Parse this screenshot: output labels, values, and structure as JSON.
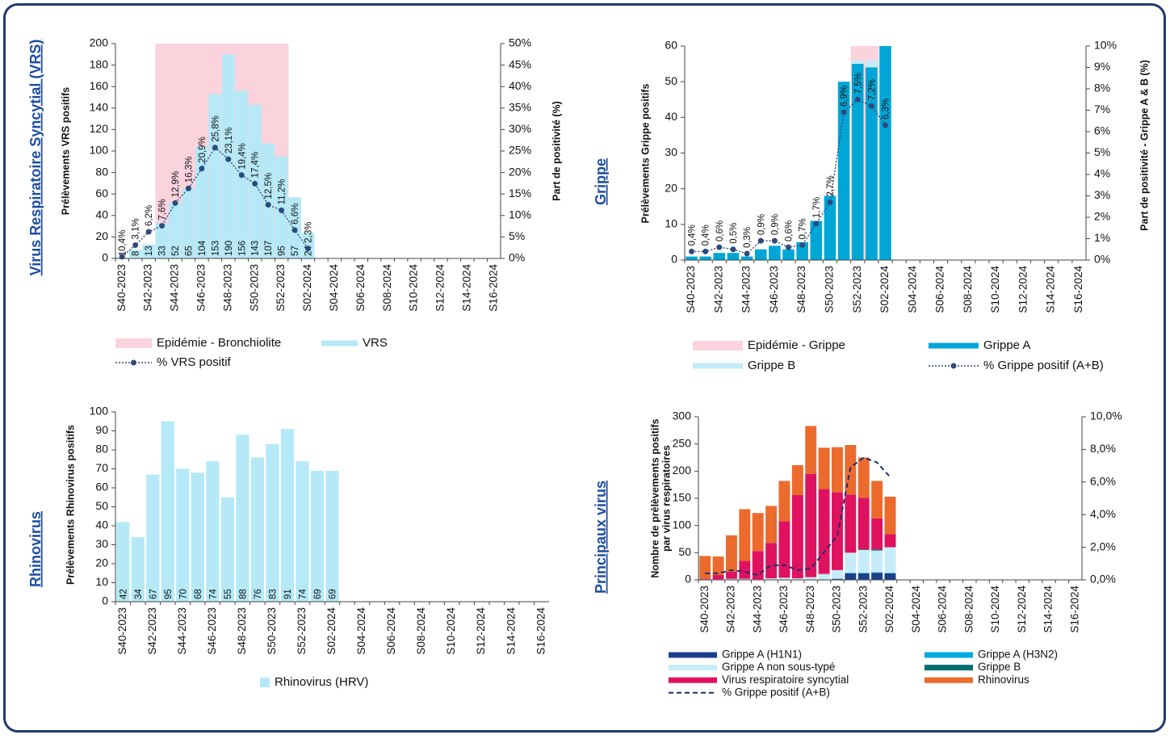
{
  "chart_data": [
    {
      "type": "bar",
      "title": "Virus Respiratoire Syncytial (VRS)",
      "ylabel": "Prélèvements VRS positifs",
      "y2label": "Part de positivité (%)",
      "categories": [
        "S40-2023",
        null,
        "S42-2023",
        null,
        "S44-2023",
        null,
        "S46-2023",
        null,
        "S48-2023",
        null,
        "S50-2023",
        null,
        "S52-2023",
        null,
        "S02-2024",
        null,
        "S04-2024",
        null,
        "S06-2024",
        null,
        "S08-2024",
        null,
        "S10-2024",
        null,
        "S12-2024",
        null,
        "S14-2024",
        null,
        "S16-2024"
      ],
      "ylim": [
        0,
        200
      ],
      "yticks": [
        0,
        20,
        40,
        60,
        80,
        100,
        120,
        140,
        160,
        180,
        200
      ],
      "y2lim": [
        0,
        50
      ],
      "y2ticks": [
        {
          "value": 0,
          "label": "0%"
        },
        {
          "value": 5,
          "label": "5%"
        },
        {
          "value": 10,
          "label": "10%"
        },
        {
          "value": 15,
          "label": "15%"
        },
        {
          "value": 20,
          "label": "20%"
        },
        {
          "value": 25,
          "label": "25%"
        },
        {
          "value": 30,
          "label": "30%"
        },
        {
          "value": 35,
          "label": "35%"
        },
        {
          "value": 40,
          "label": "40%"
        },
        {
          "value": 45,
          "label": "45%"
        },
        {
          "value": 50,
          "label": "50%"
        }
      ],
      "bar_labels": true,
      "series": [
        {
          "name": "Epidémie - Bronchiolite",
          "type": "band",
          "color": "#fad3dd",
          "values": [
            null,
            null,
            null,
            200,
            200,
            200,
            200,
            200,
            200,
            200,
            200,
            200,
            200,
            null,
            null,
            null,
            null,
            null,
            null,
            null,
            null,
            null,
            null,
            null,
            null,
            null,
            null,
            null,
            null
          ]
        },
        {
          "name": "VRS",
          "type": "bar",
          "color": "#b5e9f7",
          "values": [
            1,
            8,
            13,
            33,
            52,
            65,
            104,
            153,
            190,
            156,
            143,
            107,
            95,
            57,
            24,
            null,
            null,
            null,
            null,
            null,
            null,
            null,
            null,
            null,
            null,
            null,
            null,
            null,
            null
          ]
        },
        {
          "name": "% VRS positif",
          "type": "line",
          "axis": "y2",
          "color": "#2e4a7d",
          "dash": "dotted",
          "markers": true,
          "values": [
            0.4,
            3.1,
            6.2,
            7.6,
            12.9,
            16.3,
            20.9,
            25.8,
            23.1,
            19.4,
            17.4,
            12.5,
            11.2,
            6.6,
            2.3,
            null,
            null,
            null,
            null,
            null,
            null,
            null,
            null,
            null,
            null,
            null,
            null,
            null,
            null
          ],
          "value_labels": [
            "0,4%",
            "3,1%",
            "6,2%",
            "7,6%",
            "12,9%",
            "16,3%",
            "20,9%",
            "25,8%",
            "23,1%",
            "19,4%",
            "17,4%",
            "12,5%",
            "11,2%",
            "6,6%",
            "2,3%",
            null,
            null,
            null,
            null,
            null,
            null,
            null,
            null,
            null,
            null,
            null,
            null,
            null,
            null
          ]
        }
      ]
    },
    {
      "type": "bar",
      "title": "Grippe",
      "ylabel": "Prélèvements Grippe positifs",
      "y2label": "Part de positivité - Grippe A & B (%)",
      "categories": [
        "S40-2023",
        null,
        "S42-2023",
        null,
        "S44-2023",
        null,
        "S46-2023",
        null,
        "S48-2023",
        null,
        "S50-2023",
        null,
        "S52-2023",
        null,
        "S02-2024",
        null,
        "S04-2024",
        null,
        "S06-2024",
        null,
        "S08-2024",
        null,
        "S10-2024",
        null,
        "S12-2024",
        null,
        "S14-2024",
        null,
        "S16-2024"
      ],
      "ylim": [
        0,
        60
      ],
      "yticks": [
        0,
        10,
        20,
        30,
        40,
        50,
        60
      ],
      "y2lim": [
        0,
        10
      ],
      "y2ticks": [
        {
          "value": 0,
          "label": "0%"
        },
        {
          "value": 1,
          "label": "1%"
        },
        {
          "value": 2,
          "label": "2%"
        },
        {
          "value": 3,
          "label": "3%"
        },
        {
          "value": 4,
          "label": "4%"
        },
        {
          "value": 5,
          "label": "5%"
        },
        {
          "value": 6,
          "label": "6%"
        },
        {
          "value": 7,
          "label": "7%"
        },
        {
          "value": 8,
          "label": "8%"
        },
        {
          "value": 9,
          "label": "9%"
        },
        {
          "value": 10,
          "label": "10%"
        }
      ],
      "bar_labels": false,
      "series": [
        {
          "name": "Epidémie - Grippe",
          "type": "band",
          "color": "#fad3dd",
          "values": [
            null,
            null,
            null,
            null,
            null,
            null,
            null,
            null,
            null,
            null,
            null,
            null,
            60,
            60,
            null,
            null,
            null,
            null,
            null,
            null,
            null,
            null,
            null,
            null,
            null,
            null,
            null,
            null,
            null
          ]
        },
        {
          "name": "Grippe A",
          "type": "bar",
          "color": "#00a6d6",
          "values": [
            1,
            1,
            2,
            2,
            1,
            3,
            4,
            3,
            5,
            11,
            18,
            50,
            55,
            54,
            60,
            null,
            null,
            null,
            null,
            null,
            null,
            null,
            null,
            null,
            null,
            null,
            null,
            null,
            null
          ]
        },
        {
          "name": "Grippe B",
          "type": "bar",
          "color": "#c3ecf8",
          "values": [
            0,
            0,
            0,
            0,
            0,
            0,
            0,
            0,
            0,
            0,
            0,
            0,
            1,
            2,
            0,
            null,
            null,
            null,
            null,
            null,
            null,
            null,
            null,
            null,
            null,
            null,
            null,
            null,
            null
          ]
        },
        {
          "name": "% Grippe positif (A+B)",
          "type": "line",
          "axis": "y2",
          "color": "#2e4a7d",
          "dash": "dotted",
          "markers": true,
          "values": [
            0.4,
            0.4,
            0.6,
            0.5,
            0.3,
            0.9,
            0.9,
            0.6,
            0.7,
            1.7,
            2.7,
            6.9,
            7.5,
            7.2,
            6.3,
            null,
            null,
            null,
            null,
            null,
            null,
            null,
            null,
            null,
            null,
            null,
            null,
            null,
            null
          ],
          "value_labels": [
            "0,4%",
            "0,4%",
            "0,6%",
            "0,5%",
            "0,3%",
            "0,9%",
            "0,9%",
            "0,6%",
            "0,7%",
            "1,7%",
            "2,7%",
            "6,9%",
            "7,5%",
            "7,2%",
            "6,3%",
            null,
            null,
            null,
            null,
            null,
            null,
            null,
            null,
            null,
            null,
            null,
            null,
            null,
            null
          ]
        }
      ]
    },
    {
      "type": "bar",
      "title": "Rhinovirus",
      "ylabel": "Prélèvements Rhinovirus positifs",
      "categories": [
        "S40-2023",
        null,
        "S42-2023",
        null,
        "S44-2023",
        null,
        "S46-2023",
        null,
        "S48-2023",
        null,
        "S50-2023",
        null,
        "S52-2023",
        null,
        "S02-2024",
        null,
        "S04-2024",
        null,
        "S06-2024",
        null,
        "S08-2024",
        null,
        "S10-2024",
        null,
        "S12-2024",
        null,
        "S14-2024",
        null,
        "S16-2024"
      ],
      "ylim": [
        0,
        100
      ],
      "yticks": [
        0,
        10,
        20,
        30,
        40,
        50,
        60,
        70,
        80,
        90,
        100
      ],
      "bar_labels": true,
      "series": [
        {
          "name": "Rhinovirus (HRV)",
          "type": "bar",
          "color": "#b5e9f7",
          "values": [
            42,
            34,
            67,
            95,
            70,
            68,
            74,
            55,
            88,
            76,
            83,
            91,
            74,
            69,
            69,
            null,
            null,
            null,
            null,
            null,
            null,
            null,
            null,
            null,
            null,
            null,
            null,
            null,
            null
          ]
        }
      ]
    },
    {
      "type": "bar",
      "title": "Principaux virus",
      "ylabel": [
        "Nombre de prélèvements positifs",
        "par virus respiratoires"
      ],
      "categories": [
        "S40-2023",
        null,
        "S42-2023",
        null,
        "S44-2023",
        null,
        "S46-2023",
        null,
        "S48-2023",
        null,
        "S50-2023",
        null,
        "S52-2023",
        null,
        "S02-2024",
        null,
        "S04-2024",
        null,
        "S06-2024",
        null,
        "S08-2024",
        null,
        "S10-2024",
        null,
        "S12-2024",
        null,
        "S14-2024",
        null,
        "S16-2024"
      ],
      "ylim": [
        0,
        300
      ],
      "yticks": [
        0,
        50,
        100,
        150,
        200,
        250,
        300
      ],
      "y2lim": [
        0,
        10
      ],
      "y2ticks": [
        {
          "value": 0,
          "label": "0,0%"
        },
        {
          "value": 2,
          "label": "2,0%"
        },
        {
          "value": 4,
          "label": "4,0%"
        },
        {
          "value": 6,
          "label": "6,0%"
        },
        {
          "value": 8,
          "label": "8,0%"
        },
        {
          "value": 10,
          "label": "10,0%"
        }
      ],
      "bar_labels": false,
      "series": [
        {
          "name": "Grippe A (H1N1)",
          "type": "bar",
          "color": "#1a3f8c",
          "values": [
            0,
            0,
            0,
            0,
            0,
            0,
            0,
            0,
            0,
            1,
            2,
            12,
            12,
            13,
            12,
            null,
            null,
            null,
            null,
            null,
            null,
            null,
            null,
            null,
            null,
            null,
            null,
            null,
            null
          ]
        },
        {
          "name": "Grippe A (H3N2)",
          "type": "bar",
          "color": "#00a9e0",
          "values": [
            0,
            0,
            0,
            0,
            0,
            0,
            0,
            0,
            0,
            0,
            0,
            1,
            1,
            1,
            1,
            null,
            null,
            null,
            null,
            null,
            null,
            null,
            null,
            null,
            null,
            null,
            null,
            null,
            null
          ]
        },
        {
          "name": "Grippe A non sous-typé",
          "type": "bar",
          "color": "#c5ecf8",
          "values": [
            1,
            1,
            2,
            2,
            1,
            3,
            4,
            3,
            5,
            10,
            16,
            37,
            42,
            40,
            47,
            null,
            null,
            null,
            null,
            null,
            null,
            null,
            null,
            null,
            null,
            null,
            null,
            null,
            null
          ]
        },
        {
          "name": "Grippe B",
          "type": "bar",
          "color": "#006d6f",
          "values": [
            0,
            0,
            0,
            0,
            0,
            0,
            0,
            0,
            0,
            0,
            0,
            0,
            1,
            2,
            0,
            null,
            null,
            null,
            null,
            null,
            null,
            null,
            null,
            null,
            null,
            null,
            null,
            null,
            null
          ]
        },
        {
          "name": "Virus respiratoire syncytial",
          "type": "bar",
          "color": "#e0115f",
          "values": [
            1,
            8,
            13,
            33,
            52,
            65,
            104,
            153,
            190,
            156,
            143,
            107,
            95,
            57,
            24,
            null,
            null,
            null,
            null,
            null,
            null,
            null,
            null,
            null,
            null,
            null,
            null,
            null,
            null
          ]
        },
        {
          "name": "Rhinovirus",
          "type": "bar",
          "color": "#ec6a2c",
          "values": [
            42,
            34,
            67,
            95,
            70,
            68,
            74,
            55,
            88,
            76,
            83,
            91,
            74,
            69,
            69,
            null,
            null,
            null,
            null,
            null,
            null,
            null,
            null,
            null,
            null,
            null,
            null,
            null,
            null
          ]
        },
        {
          "name": "% Grippe positif (A+B)",
          "type": "line",
          "axis": "y2",
          "color": "#1b2f6e",
          "dash": "dashed",
          "markers": false,
          "values": [
            0.4,
            0.4,
            0.6,
            0.5,
            0.3,
            0.9,
            0.9,
            0.6,
            0.7,
            1.7,
            2.7,
            6.9,
            7.5,
            7.2,
            6.3,
            null,
            null,
            null,
            null,
            null,
            null,
            null,
            null,
            null,
            null,
            null,
            null,
            null,
            null
          ]
        }
      ]
    }
  ]
}
